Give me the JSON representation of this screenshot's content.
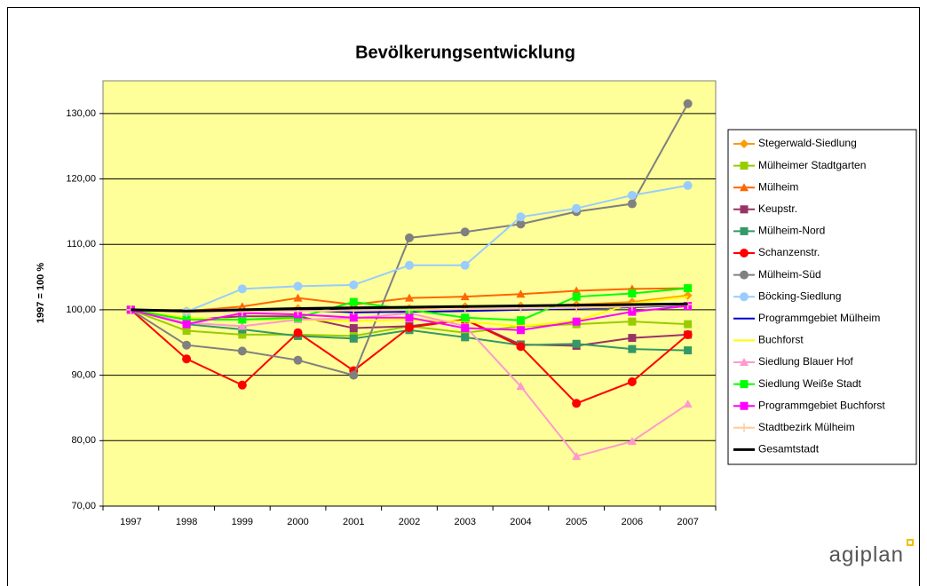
{
  "chart_data": {
    "type": "line",
    "title": "Bevölkerungsentwicklung",
    "y_label": "1997 = 100 %",
    "logo": "agiplan",
    "categories": [
      "1997",
      "1998",
      "1999",
      "2000",
      "2001",
      "2002",
      "2003",
      "2004",
      "2005",
      "2006",
      "2007"
    ],
    "ylim": [
      70,
      135
    ],
    "yticks": [
      {
        "value": 70,
        "label": "70,00"
      },
      {
        "value": 80,
        "label": "80,00"
      },
      {
        "value": 90,
        "label": "90,00"
      },
      {
        "value": 100,
        "label": "100,00"
      },
      {
        "value": 110,
        "label": "110,00"
      },
      {
        "value": 120,
        "label": "120,00"
      },
      {
        "value": 130,
        "label": "130,00"
      }
    ],
    "grid": true,
    "legend": "right",
    "background": "#ffff99",
    "series": [
      {
        "name": "Stegerwald-Siedlung",
        "color": "#ff9900",
        "marker": "diamond",
        "values": [
          100,
          99.8,
          99.9,
          100.2,
          100.3,
          100.2,
          100.5,
          100.6,
          100.8,
          101.2,
          102.2
        ]
      },
      {
        "name": "Mülheimer Stadtgarten",
        "color": "#99cc00",
        "marker": "square",
        "values": [
          100,
          96.8,
          96.2,
          96.2,
          96.0,
          97.5,
          96.5,
          97.5,
          97.8,
          98.2,
          97.8
        ]
      },
      {
        "name": "Mülheim",
        "color": "#ff6600",
        "marker": "triangle",
        "values": [
          100,
          99.8,
          100.5,
          101.8,
          100.8,
          101.8,
          102.0,
          102.4,
          102.9,
          103.2,
          103.3
        ]
      },
      {
        "name": "Keupstr.",
        "color": "#993366",
        "marker": "square",
        "values": [
          100,
          98.5,
          99.0,
          99.0,
          97.2,
          97.5,
          98.5,
          94.7,
          94.5,
          95.7,
          96.2
        ]
      },
      {
        "name": "Mülheim-Nord",
        "color": "#339966",
        "marker": "square",
        "values": [
          100,
          97.8,
          97.0,
          96.0,
          95.6,
          96.9,
          95.8,
          94.6,
          94.8,
          94.0,
          93.8
        ]
      },
      {
        "name": "Schanzenstr.",
        "color": "#ff0000",
        "marker": "circle",
        "values": [
          100,
          92.5,
          88.5,
          96.5,
          90.7,
          97.3,
          98.5,
          94.4,
          85.7,
          89.0,
          96.2
        ]
      },
      {
        "name": "Mülheim-Süd",
        "color": "#808080",
        "marker": "circle",
        "values": [
          100,
          94.6,
          93.7,
          92.3,
          90.0,
          111.0,
          111.9,
          113.1,
          115.0,
          116.2,
          131.5
        ]
      },
      {
        "name": "Böcking-Siedlung",
        "color": "#99ccff",
        "marker": "circle",
        "values": [
          100,
          99.7,
          103.2,
          103.6,
          103.8,
          106.8,
          106.8,
          114.2,
          115.5,
          117.5,
          119.0
        ]
      },
      {
        "name": "Programmgebiet Mülheim",
        "color": "#0000cc",
        "marker": "none",
        "values": [
          100,
          99.7,
          99.8,
          100.0,
          99.6,
          99.7,
          99.8,
          100.0,
          100.2,
          100.4,
          100.7
        ]
      },
      {
        "name": "Buchforst",
        "color": "#ffff00",
        "marker": "none",
        "values": [
          100,
          98.8,
          98.5,
          98.5,
          98.3,
          98.5,
          98.2,
          97.5,
          98.3,
          101.0,
          102.0
        ]
      },
      {
        "name": "Siedlung Blauer Hof",
        "color": "#ff99cc",
        "marker": "triangle",
        "values": [
          100,
          98.0,
          97.5,
          98.5,
          98.7,
          99.5,
          97.5,
          88.3,
          77.6,
          79.9,
          85.6
        ]
      },
      {
        "name": "Siedlung Weiße Stadt",
        "color": "#00ff00",
        "marker": "square",
        "values": [
          100,
          98.5,
          98.5,
          98.8,
          101.2,
          100.0,
          98.8,
          98.4,
          102.0,
          102.5,
          103.3
        ]
      },
      {
        "name": "Programmgebiet Buchforst",
        "color": "#ff00ff",
        "marker": "square",
        "values": [
          100,
          97.8,
          99.5,
          99.3,
          98.8,
          98.8,
          97.2,
          96.9,
          98.2,
          99.7,
          100.6
        ]
      },
      {
        "name": "Stadtbezirk Mülheim",
        "color": "#ffcc99",
        "marker": "plus",
        "values": [
          100,
          99.6,
          99.7,
          99.8,
          99.9,
          100.0,
          100.1,
          100.2,
          100.3,
          100.5,
          100.8
        ]
      },
      {
        "name": "Gesamtstadt",
        "color": "#000000",
        "marker": "none",
        "width": 3,
        "values": [
          100,
          99.8,
          100.0,
          100.2,
          100.3,
          100.4,
          100.5,
          100.6,
          100.7,
          100.8,
          100.9
        ]
      }
    ]
  }
}
